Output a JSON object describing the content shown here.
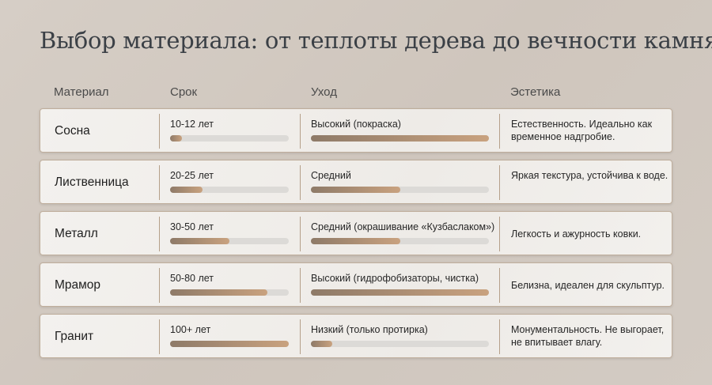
{
  "title": "Выбор материала: от теплоты дерева до вечности камня",
  "headers": {
    "material": "Материал",
    "term": "Срок",
    "care": "Уход",
    "aesthetics": "Эстетика"
  },
  "rows": [
    {
      "material": "Сосна",
      "term": "10-12 лет",
      "term_level": 0.1,
      "care": "Высокий (покраска)",
      "care_level": 1.0,
      "aesthetics": "Естественность. Идеально как временное надгробие."
    },
    {
      "material": "Лиственница",
      "term": "20-25 лет",
      "term_level": 0.27,
      "care": "Средний",
      "care_level": 0.5,
      "aesthetics": "Яркая текстура, устойчива к воде."
    },
    {
      "material": "Металл",
      "term": "30-50 лет",
      "term_level": 0.5,
      "care": "Средний (окрашивание «Кузбаслаком»)",
      "care_level": 0.5,
      "aesthetics": "Легкость и ажурность ковки."
    },
    {
      "material": "Мрамор",
      "term": "50-80 лет",
      "term_level": 0.82,
      "care": "Высокий (гидрофобизаторы, чистка)",
      "care_level": 1.0,
      "aesthetics": "Белизна, идеален для скульптур."
    },
    {
      "material": "Гранит",
      "term": "100+ лет",
      "term_level": 1.0,
      "care": "Низкий (только протирка)",
      "care_level": 0.12,
      "aesthetics": "Монументальность. Не выгорает, не впитывает влагу."
    }
  ]
}
